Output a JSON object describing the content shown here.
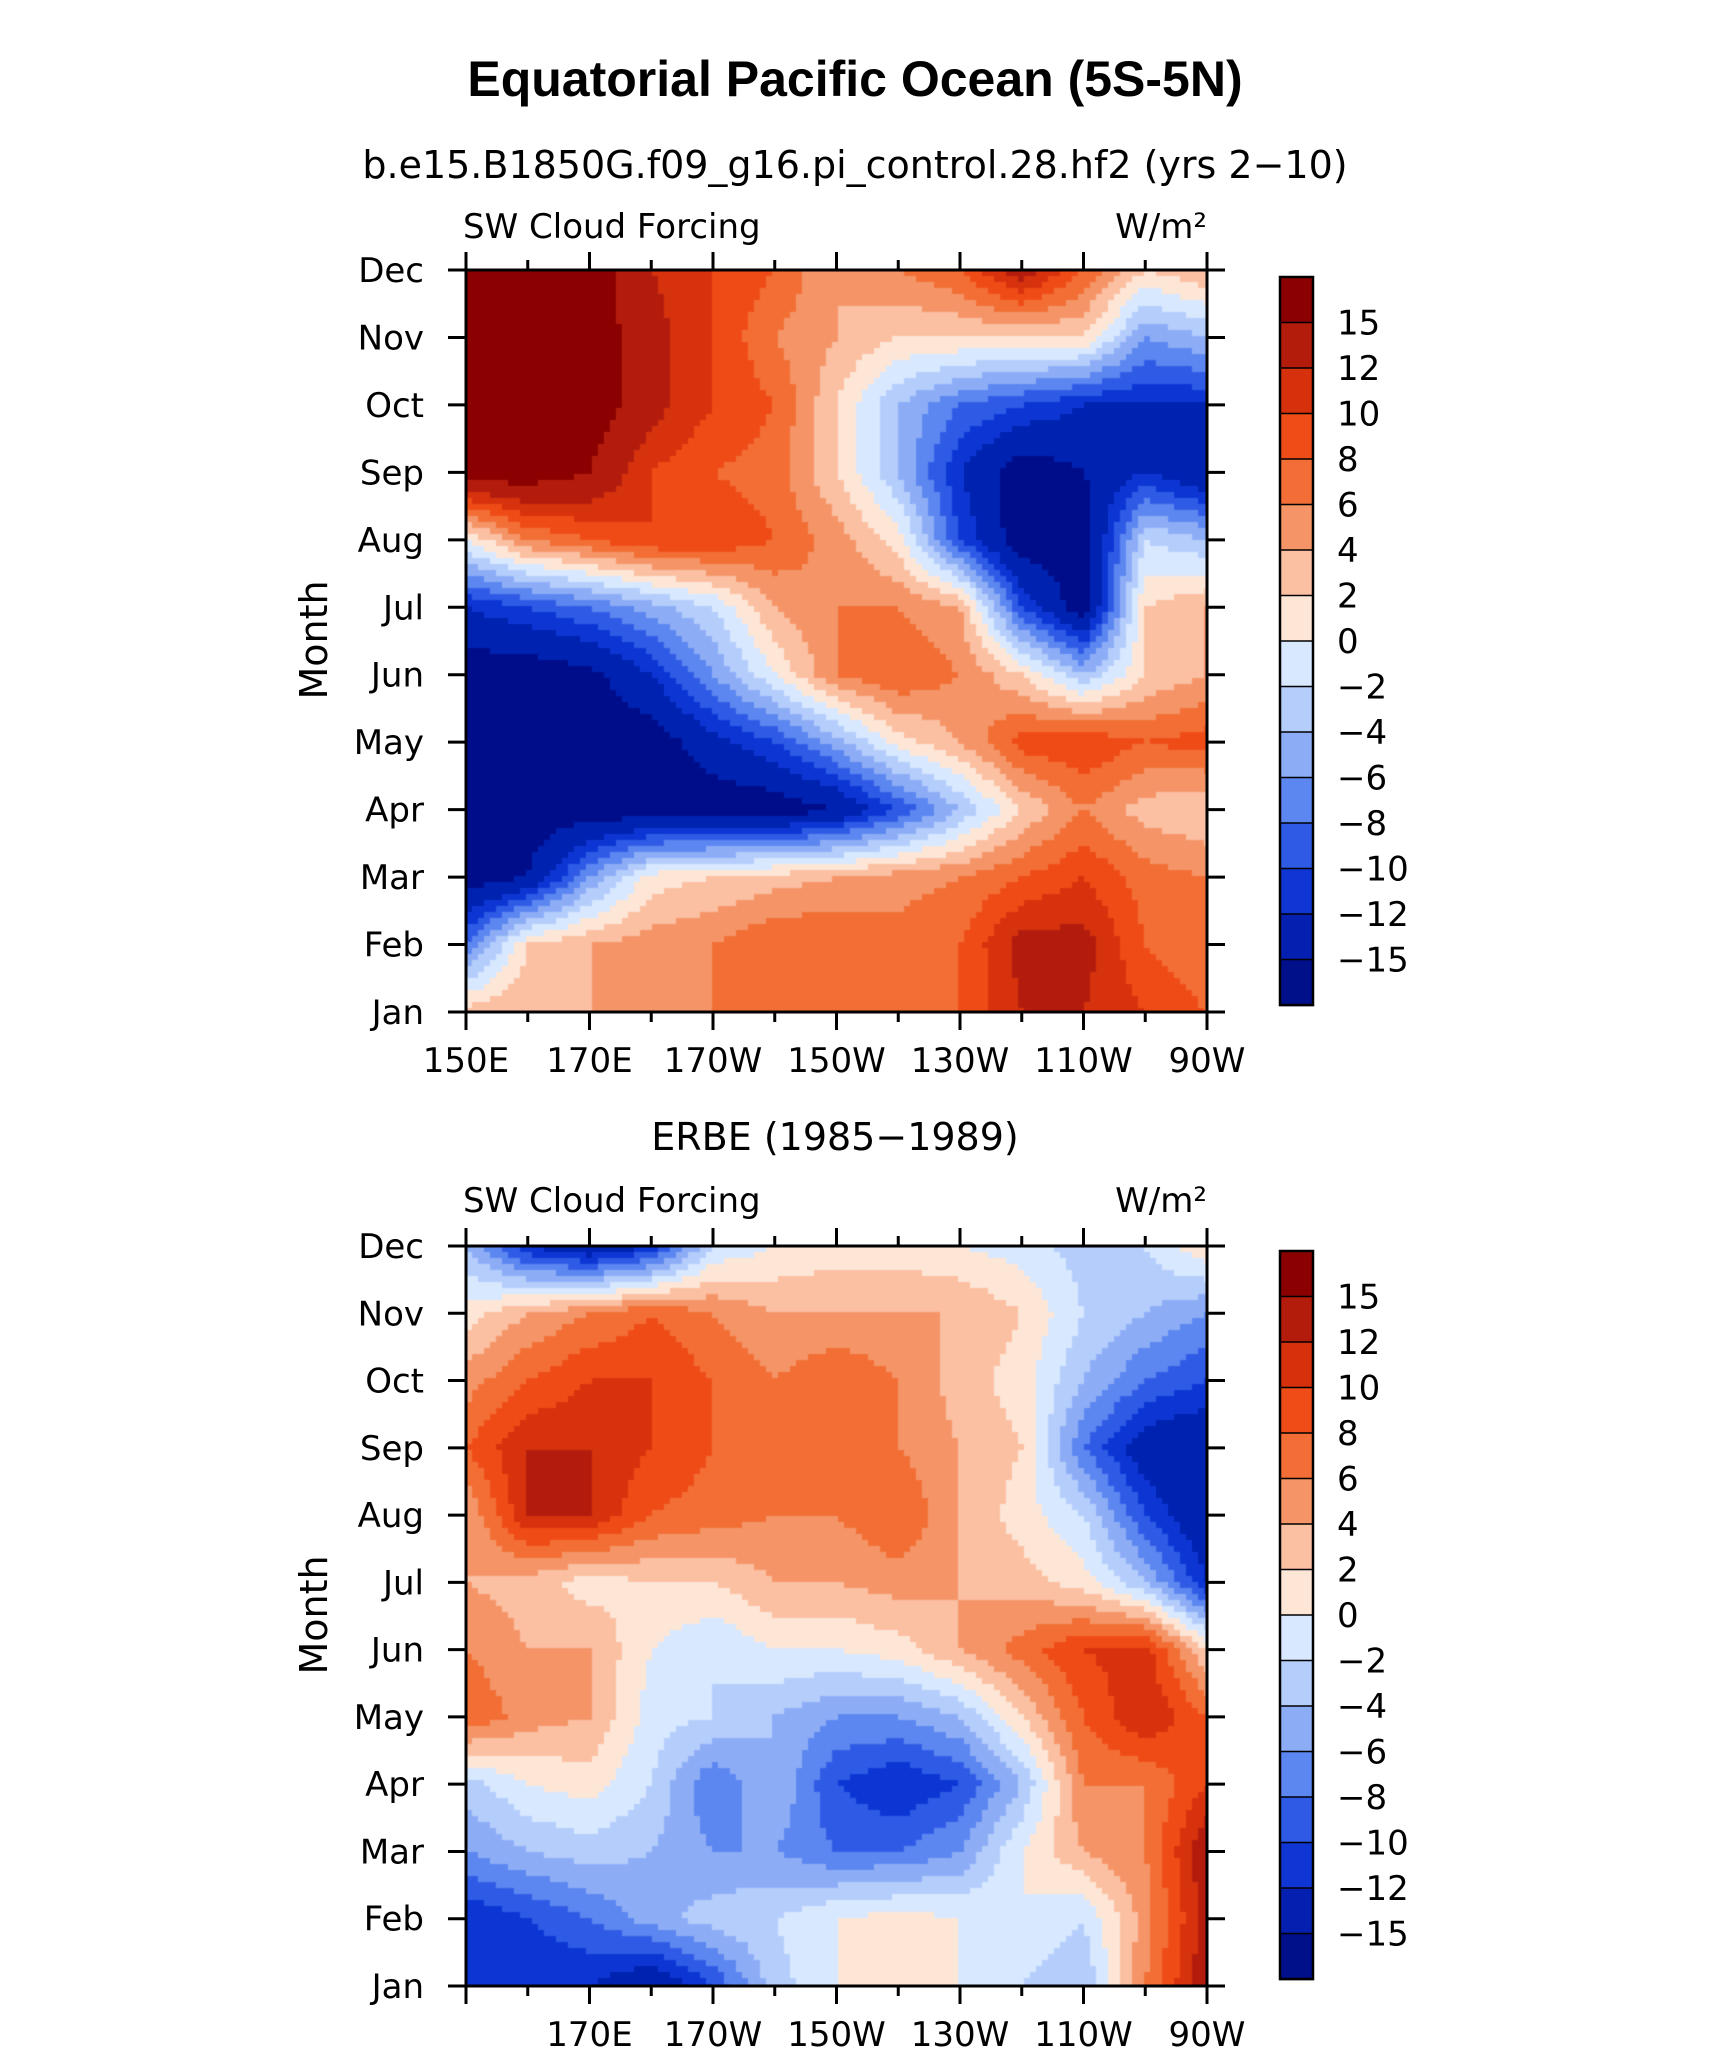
{
  "figure": {
    "title": "Equatorial Pacific Ocean (5S-5N)"
  },
  "colorbar": {
    "labels": [
      "15",
      "12",
      "10",
      "8",
      "6",
      "4",
      "2",
      "0",
      "−2",
      "−4",
      "−6",
      "−8",
      "−10",
      "−12",
      "−15"
    ],
    "colors": [
      "#8b0000",
      "#b31b0a",
      "#d6300c",
      "#ef4c18",
      "#f26e36",
      "#f59466",
      "#fbbfa2",
      "#fde6d6",
      "#d8e8ff",
      "#b4cdfb",
      "#8cadf6",
      "#5c86f0",
      "#2e5ae6",
      "#0f36d4",
      "#0520b0",
      "#000f8a"
    ]
  },
  "chart_data": [
    {
      "type": "heatmap",
      "subtitle": "b.e15.B1850G.f09_g16.pi_control.28.hf2 (yrs 2−10)",
      "left_label": "SW Cloud Forcing",
      "right_label": "W/m²",
      "ylabel": "Month",
      "y_ticks": [
        "Jan",
        "Feb",
        "Mar",
        "Apr",
        "May",
        "Jun",
        "Jul",
        "Aug",
        "Sep",
        "Oct",
        "Nov",
        "Dec"
      ],
      "x_ticks": [
        "150E",
        "170E",
        "170W",
        "150W",
        "130W",
        "110W",
        "90W"
      ],
      "x_range": [
        150,
        270
      ],
      "units": "W/m²",
      "levels": [
        -15,
        -12,
        -10,
        -8,
        -6,
        -4,
        -2,
        0,
        2,
        4,
        6,
        8,
        10,
        12,
        15
      ],
      "x": [
        150,
        160,
        170,
        180,
        190,
        200,
        210,
        220,
        230,
        240,
        250,
        260,
        270
      ],
      "y": [
        "Jan",
        "Feb",
        "Mar",
        "Apr",
        "May",
        "Jun",
        "Jul",
        "Aug",
        "Sep",
        "Oct",
        "Nov",
        "Dec"
      ],
      "z": [
        [
          3,
          4,
          4,
          4,
          6,
          6,
          6,
          6,
          8,
          12,
          12,
          10,
          8
        ],
        [
          -8,
          2,
          4,
          5,
          6,
          8,
          8,
          7,
          8,
          13,
          13,
          8,
          6
        ],
        [
          -17,
          -15,
          -6,
          1,
          2,
          3,
          4,
          5,
          6,
          8,
          10,
          7,
          6
        ],
        [
          -17,
          -17,
          -17,
          -17,
          -17,
          -17,
          -15,
          -10,
          -4,
          2,
          6,
          3,
          2
        ],
        [
          -17,
          -17,
          -17,
          -17,
          -13,
          -10,
          -5,
          1,
          4,
          9,
          10,
          8,
          9
        ],
        [
          -17,
          -17,
          -16,
          -12,
          -6,
          0,
          6,
          8,
          6,
          2,
          -4,
          2,
          4
        ],
        [
          -12,
          -10,
          -8,
          -5,
          -2,
          4,
          6,
          6,
          4,
          -10,
          -17,
          2,
          4
        ],
        [
          0,
          6,
          8,
          10,
          10,
          8,
          5,
          1,
          -10,
          -17,
          -17,
          -2,
          -4
        ],
        [
          17,
          17,
          15,
          10,
          8,
          7,
          2,
          -4,
          -12,
          -17,
          -15,
          -12,
          -15
        ],
        [
          17,
          17,
          17,
          13,
          10,
          8,
          2,
          -4,
          -8,
          -10,
          -12,
          -12,
          -12
        ],
        [
          17,
          17,
          17,
          13,
          10,
          6,
          4,
          2,
          2,
          2,
          2,
          -6,
          -4
        ],
        [
          17,
          17,
          17,
          12,
          10,
          8,
          4,
          6,
          8,
          14,
          8,
          2,
          4
        ]
      ]
    },
    {
      "type": "heatmap",
      "subtitle": "ERBE (1985−1989)",
      "left_label": "SW Cloud Forcing",
      "right_label": "W/m²",
      "ylabel": "Month",
      "y_ticks": [
        "Jan",
        "Feb",
        "Mar",
        "Apr",
        "May",
        "Jun",
        "Jul",
        "Aug",
        "Sep",
        "Oct",
        "Nov",
        "Dec"
      ],
      "x_ticks": [
        "170E",
        "170W",
        "150W",
        "130W",
        "110W",
        "90W"
      ],
      "x_range": [
        150,
        270
      ],
      "units": "W/m²",
      "levels": [
        -15,
        -12,
        -10,
        -8,
        -6,
        -4,
        -2,
        0,
        2,
        4,
        6,
        8,
        10,
        12,
        15
      ],
      "x": [
        150,
        160,
        170,
        180,
        190,
        200,
        210,
        220,
        230,
        240,
        250,
        260,
        270
      ],
      "y": [
        "Jan",
        "Feb",
        "Mar",
        "Apr",
        "May",
        "Jun",
        "Jul",
        "Aug",
        "Sep",
        "Oct",
        "Nov",
        "Dec"
      ],
      "z": [
        [
          -12,
          -12,
          -12,
          -15,
          -10,
          -3,
          0,
          1,
          0,
          -2,
          -4,
          6,
          14
        ],
        [
          -12,
          -10,
          -8,
          -5,
          -3,
          -2,
          0,
          1,
          0,
          0,
          -2,
          5,
          13
        ],
        [
          -6,
          -4,
          -3,
          -4,
          -6,
          -6,
          -8,
          -8,
          -6,
          0,
          4,
          6,
          14
        ],
        [
          -3,
          0,
          1,
          -2,
          -8,
          -4,
          -10,
          -12,
          -10,
          -4,
          6,
          6,
          10
        ],
        [
          8,
          5,
          4,
          -1,
          -2,
          -4,
          -6,
          -6,
          -4,
          2,
          8,
          12,
          8
        ],
        [
          6,
          4,
          4,
          0,
          -2,
          0,
          0,
          1,
          4,
          7,
          10,
          11,
          2
        ],
        [
          4,
          3,
          1,
          2,
          2,
          4,
          4,
          5,
          4,
          3,
          1,
          -4,
          -12
        ],
        [
          4,
          12,
          12,
          8,
          7,
          6,
          6,
          8,
          4,
          1,
          -2,
          -10,
          -15
        ],
        [
          8,
          12,
          12,
          10,
          8,
          6,
          6,
          6,
          4,
          2,
          -8,
          -14,
          -15
        ],
        [
          5,
          8,
          10,
          10,
          8,
          6,
          8,
          6,
          3,
          1,
          -4,
          -8,
          -10
        ],
        [
          1,
          4,
          6,
          8,
          6,
          4,
          4,
          4,
          4,
          2,
          -2,
          -4,
          -6
        ],
        [
          -4,
          -12,
          -15,
          -12,
          -2,
          0,
          1,
          1,
          0,
          -1,
          -3,
          -2,
          2
        ]
      ]
    }
  ]
}
